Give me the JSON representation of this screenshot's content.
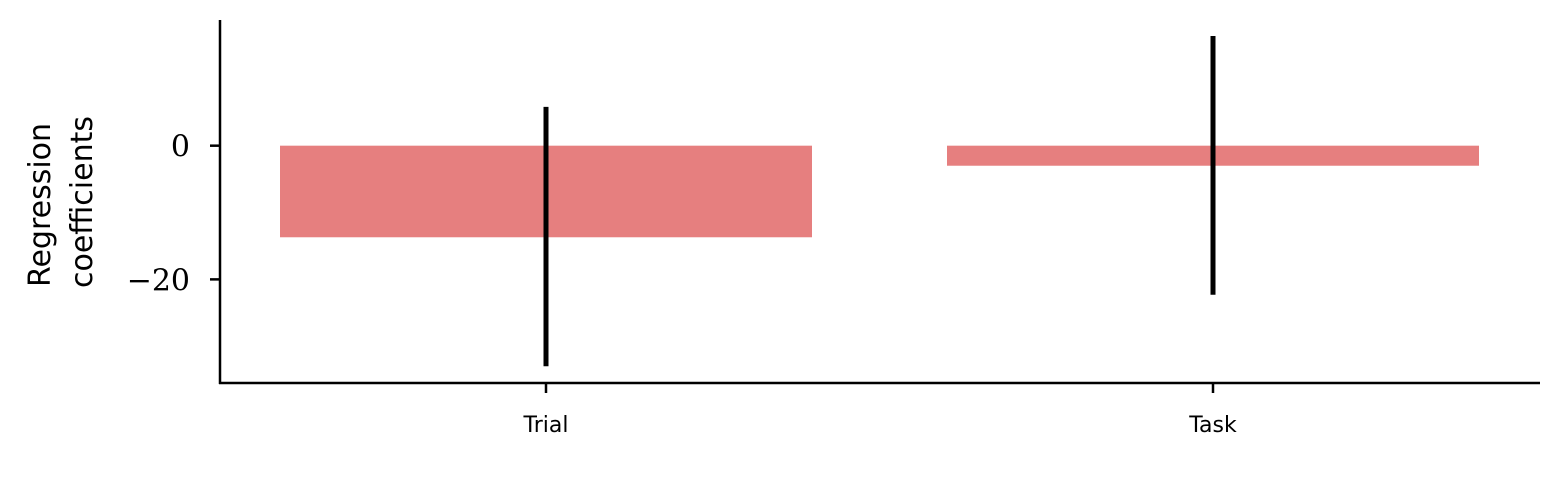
{
  "chart_data": {
    "type": "bar",
    "categories": [
      "Trial",
      "Task"
    ],
    "values": [
      -13.7,
      -3.0
    ],
    "error_low": [
      -33.0,
      -22.3
    ],
    "error_high": [
      5.8,
      16.4
    ],
    "ylabel_lines": [
      "Regression",
      "coefficients"
    ],
    "yticks": [
      0,
      -20
    ],
    "ytick_labels": [
      "0",
      "−20"
    ],
    "ylim": [
      -35.5,
      18.8
    ],
    "bar_color": "#e67f7f",
    "error_color": "#000000",
    "grid": false
  }
}
